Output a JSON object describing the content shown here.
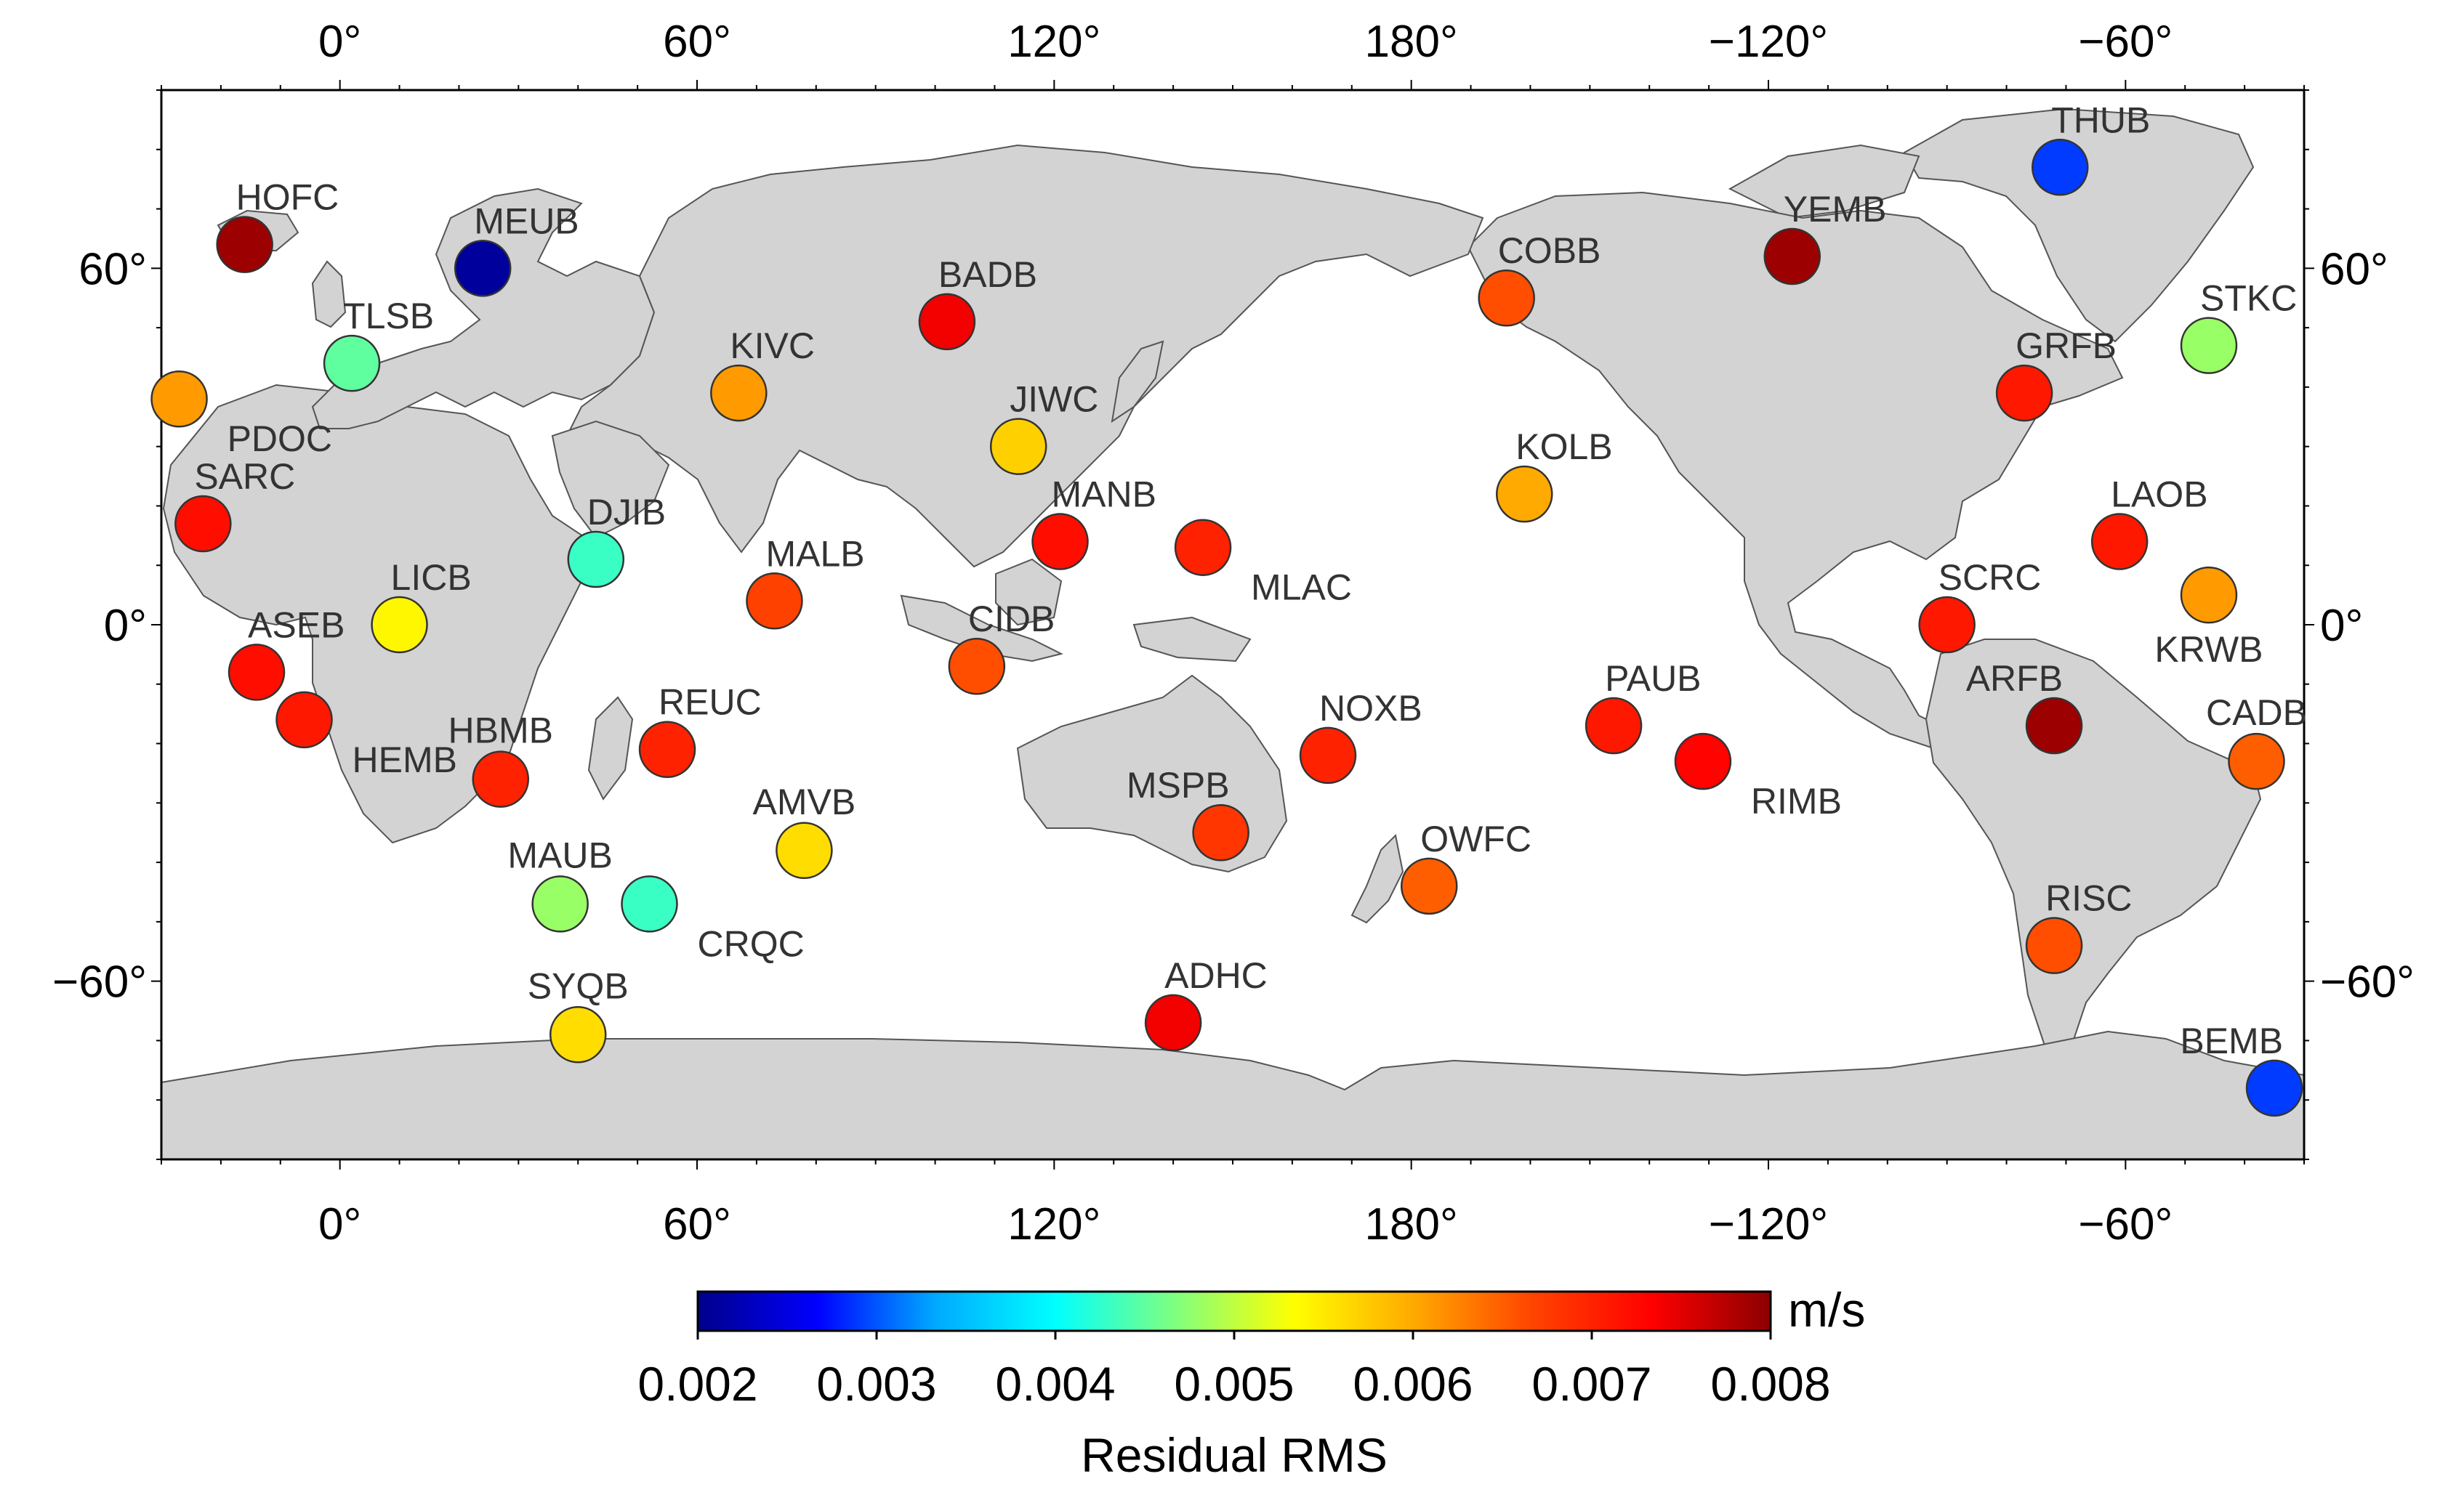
{
  "map": {
    "projection": "equirectangular",
    "lon_range": [
      -30,
      330
    ],
    "lat_range": [
      -90,
      90
    ],
    "top_lon_ticks": [
      "0°",
      "60°",
      "120°",
      "180°",
      "−120°",
      "−60°"
    ],
    "bottom_lon_ticks": [
      "0°",
      "60°",
      "120°",
      "180°",
      "−120°",
      "−60°"
    ],
    "left_lat_ticks": [
      "60°",
      "0°",
      "−60°"
    ],
    "right_lat_ticks": [
      "60°",
      "0°",
      "−60°"
    ],
    "tick_lons": [
      0,
      60,
      120,
      180,
      240,
      300
    ],
    "tick_lats": [
      60,
      0,
      -60
    ],
    "land_color": "#d3d3d3",
    "ocean_color": "#ffffff"
  },
  "stations": [
    {
      "code": "HOFC",
      "lon": -16,
      "lat": 64,
      "rms": 0.0079,
      "label_pos": "ne"
    },
    {
      "code": "MEUB",
      "lon": 24,
      "lat": 60,
      "rms": 0.0021,
      "label_pos": "ne"
    },
    {
      "code": "TLSB",
      "lon": 2,
      "lat": 44,
      "rms": 0.0045,
      "label_pos": "ne"
    },
    {
      "code": "PDOC",
      "lon": -27,
      "lat": 38,
      "rms": 0.0061,
      "label_pos": "se"
    },
    {
      "code": "SARC",
      "lon": -23,
      "lat": 17,
      "rms": 0.0072,
      "label_pos": "ne"
    },
    {
      "code": "ASEB",
      "lon": -14,
      "lat": -8,
      "rms": 0.0072,
      "label_pos": "ne"
    },
    {
      "code": "HEMB",
      "lon": -6,
      "lat": -16,
      "rms": 0.0071,
      "label_pos": "se"
    },
    {
      "code": "LICB",
      "lon": 10,
      "lat": 0,
      "rms": 0.0054,
      "label_pos": "ne"
    },
    {
      "code": "DJIB",
      "lon": 43,
      "lat": 11,
      "rms": 0.0043,
      "label_pos": "ne"
    },
    {
      "code": "HBMB",
      "lon": 27,
      "lat": -26,
      "rms": 0.007,
      "label_pos": "n"
    },
    {
      "code": "REUC",
      "lon": 55,
      "lat": -21,
      "rms": 0.007,
      "label_pos": "ne"
    },
    {
      "code": "AMVB",
      "lon": 78,
      "lat": -38,
      "rms": 0.0056,
      "label_pos": "n"
    },
    {
      "code": "MAUB",
      "lon": 37,
      "lat": -47,
      "rms": 0.0048,
      "label_pos": "n"
    },
    {
      "code": "CRQC",
      "lon": 52,
      "lat": -47,
      "rms": 0.0043,
      "label_pos": "se"
    },
    {
      "code": "SYQB",
      "lon": 40,
      "lat": -69,
      "rms": 0.0056,
      "label_pos": "n"
    },
    {
      "code": "KIVC",
      "lon": 67,
      "lat": 39,
      "rms": 0.0061,
      "label_pos": "ne"
    },
    {
      "code": "BADB",
      "lon": 102,
      "lat": 51,
      "rms": 0.0074,
      "label_pos": "ne"
    },
    {
      "code": "JIWC",
      "lon": 114,
      "lat": 30,
      "rms": 0.0057,
      "label_pos": "ne"
    },
    {
      "code": "MANB",
      "lon": 121,
      "lat": 14,
      "rms": 0.0072,
      "label_pos": "ne"
    },
    {
      "code": "MALB",
      "lon": 73,
      "lat": 4,
      "rms": 0.0067,
      "label_pos": "ne"
    },
    {
      "code": "CIDB",
      "lon": 107,
      "lat": -7,
      "rms": 0.0066,
      "label_pos": "ne"
    },
    {
      "code": "MLAC",
      "lon": 145,
      "lat": 13,
      "rms": 0.007,
      "label_pos": "se"
    },
    {
      "code": "MSPB",
      "lon": 148,
      "lat": -35,
      "rms": 0.0068,
      "label_pos": "nw"
    },
    {
      "code": "ADHC",
      "lon": 140,
      "lat": -67,
      "rms": 0.0074,
      "label_pos": "ne"
    },
    {
      "code": "NOXB",
      "lon": 166,
      "lat": -22,
      "rms": 0.007,
      "label_pos": "ne"
    },
    {
      "code": "OWFC",
      "lon": 183,
      "lat": -44,
      "rms": 0.0065,
      "label_pos": "ne"
    },
    {
      "code": "COBB",
      "lon": 196,
      "lat": 55,
      "rms": 0.0066,
      "label_pos": "ne"
    },
    {
      "code": "KOLB",
      "lon": 199,
      "lat": 22,
      "rms": 0.006,
      "label_pos": "ne"
    },
    {
      "code": "PAUB",
      "lon": 214,
      "lat": -17,
      "rms": 0.0071,
      "label_pos": "ne"
    },
    {
      "code": "RIMB",
      "lon": 229,
      "lat": -23,
      "rms": 0.0073,
      "label_pos": "se"
    },
    {
      "code": "YEMB",
      "lon": 244,
      "lat": 62,
      "rms": 0.0079,
      "label_pos": "ne"
    },
    {
      "code": "THUB",
      "lon": 289,
      "lat": 77,
      "rms": 0.0029,
      "label_pos": "ne"
    },
    {
      "code": "STKC",
      "lon": 314,
      "lat": 47,
      "rms": 0.0048,
      "label_pos": "ne"
    },
    {
      "code": "GRFB",
      "lon": 283,
      "lat": 39,
      "rms": 0.0071,
      "label_pos": "ne"
    },
    {
      "code": "LAOB",
      "lon": 299,
      "lat": 14,
      "rms": 0.0071,
      "label_pos": "ne"
    },
    {
      "code": "SCRC",
      "lon": 270,
      "lat": 0,
      "rms": 0.0071,
      "label_pos": "ne"
    },
    {
      "code": "KRWB",
      "lon": 314,
      "lat": 5,
      "rms": 0.0061,
      "label_pos": "s"
    },
    {
      "code": "ARFB",
      "lon": 288,
      "lat": -17,
      "rms": 0.0079,
      "label_pos": "nw"
    },
    {
      "code": "CADB",
      "lon": 322,
      "lat": -23,
      "rms": 0.0065,
      "label_pos": "n"
    },
    {
      "code": "RISC",
      "lon": 288,
      "lat": -54,
      "rms": 0.0066,
      "label_pos": "ne"
    },
    {
      "code": "BEMB",
      "lon": 325,
      "lat": -78,
      "rms": 0.0029,
      "label_pos": "nw"
    }
  ],
  "colorbar": {
    "min": 0.002,
    "max": 0.008,
    "tick_values": [
      0.002,
      0.003,
      0.004,
      0.005,
      0.006,
      0.007,
      0.008
    ],
    "tick_labels": [
      "0.002",
      "0.003",
      "0.004",
      "0.005",
      "0.006",
      "0.007",
      "0.008"
    ],
    "unit": "m/s",
    "title": "Residual RMS",
    "colormap": "jet",
    "colormap_stops": [
      "#00008b",
      "#0000ff",
      "#00aaff",
      "#00ffff",
      "#7fff7f",
      "#ffff00",
      "#ffaa00",
      "#ff4400",
      "#ff0000",
      "#8b0000"
    ]
  }
}
